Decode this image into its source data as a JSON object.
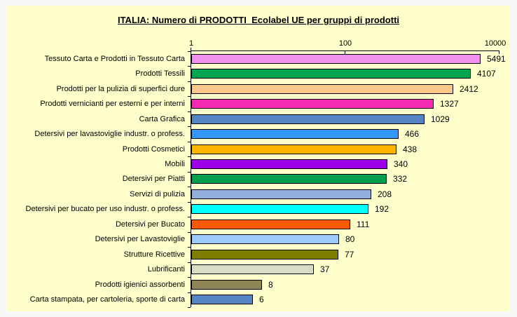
{
  "panel": {
    "background": "#FFFFCC",
    "outer_background": "#F7F7F5",
    "bar_border_color": "#000000"
  },
  "chart_data": {
    "type": "bar",
    "orientation": "horizontal",
    "title": "ITALIA: Numero di PRODOTTI  Ecolabel UE per gruppi di prodotti",
    "x_scale": "log",
    "xlim": [
      1,
      10000
    ],
    "x_ticks": [
      "1",
      "100",
      "10000"
    ],
    "grid": false,
    "legend": false,
    "categories": [
      "Tessuto Carta e Prodotti in Tessuto Carta",
      "Prodotti Tessili",
      "Prodotti per la pulizia di superfici dure",
      "Prodotti vernicianti per esterni e per interni",
      "Carta Grafica",
      "Detersivi per lavastoviglie industr. o profess.",
      "Prodotti Cosmetici",
      "Mobili",
      "Detersivi per Piatti",
      "Servizi di pulizia",
      "Detersivi per bucato per uso industr. o profess.",
      "Detersivi per Bucato",
      "Detersivi per Lavastoviglie",
      "Strutture Ricettive",
      "Lubrificanti",
      "Prodotti igienici assorbenti",
      "Carta stampata, per cartoleria, sporte di carta"
    ],
    "values": [
      5491,
      4107,
      2412,
      1327,
      1029,
      466,
      438,
      340,
      332,
      208,
      192,
      111,
      80,
      77,
      37,
      8,
      6
    ],
    "bar_colors": [
      "#F091EE",
      "#00A551",
      "#FBC88E",
      "#F42BB2",
      "#5585C5",
      "#3399FF",
      "#FFB400",
      "#9D00E8",
      "#009E4F",
      "#92AEDC",
      "#00FFFF",
      "#FF5A00",
      "#9CCAFB",
      "#7F7E00",
      "#D6DEC6",
      "#8F8455",
      "#5585C5"
    ]
  }
}
